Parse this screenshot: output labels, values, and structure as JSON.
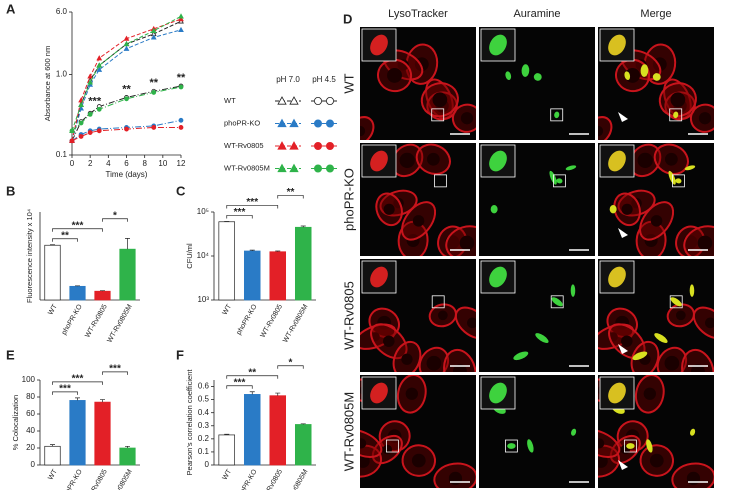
{
  "chart_data": [
    {
      "type": "line",
      "panel": "A",
      "y_label": "Absorbance at 600 nm",
      "x_label": "Time (days)",
      "x": [
        0,
        1,
        2,
        3,
        6,
        9,
        12
      ],
      "xlim": [
        0,
        12
      ],
      "xticks": [
        0,
        2,
        4,
        6,
        8,
        10,
        12
      ],
      "ylim": [
        0.1,
        6
      ],
      "yticks": [
        0.1,
        {
          "value": 1,
          "label": "1.0"
        },
        {
          "value": 6,
          "label": "6.0"
        }
      ],
      "log_y": true,
      "conditions": [
        "pH 7.0",
        "pH 4.5"
      ],
      "series": [
        {
          "name": "WT",
          "color": "#222222",
          "filled": false,
          "values": [
            [
              0.15,
              0.42,
              0.85,
              1.3,
              2.4,
              3.2,
              4.6
            ],
            [
              0.15,
              0.26,
              0.33,
              0.4,
              0.52,
              0.62,
              0.72
            ]
          ]
        },
        {
          "name": "phoPR-KO",
          "color": "#2a7bc6",
          "filled": true,
          "values": [
            [
              0.15,
              0.38,
              0.75,
              1.15,
              2.1,
              2.9,
              3.6
            ],
            [
              0.15,
              0.18,
              0.2,
              0.21,
              0.22,
              0.23,
              0.27
            ]
          ]
        },
        {
          "name": "WT-Rv0805",
          "color": "#e32027",
          "filled": true,
          "values": [
            [
              0.15,
              0.48,
              0.95,
              1.6,
              2.8,
              3.7,
              4.9
            ],
            [
              0.15,
              0.17,
              0.19,
              0.2,
              0.21,
              0.22,
              0.22
            ]
          ]
        },
        {
          "name": "WT-Rv0805M",
          "color": "#2fb34a",
          "filled": true,
          "values": [
            [
              0.2,
              0.42,
              0.8,
              1.3,
              2.4,
              3.5,
              5.3
            ],
            [
              0.2,
              0.25,
              0.32,
              0.37,
              0.5,
              0.6,
              0.7
            ]
          ]
        }
      ],
      "annotations": [
        {
          "text": "***",
          "x": 2.5
        },
        {
          "text": "**",
          "x": 6
        },
        {
          "text": "**",
          "x": 9
        },
        {
          "text": "**",
          "x": 12
        }
      ]
    },
    {
      "type": "bar",
      "panel": "B",
      "y_label": "Fluorescence intensity x 10⁴",
      "categories": [
        "WT",
        "phoPR-KO",
        "WT-Rv0805",
        "WT-Rv0805M"
      ],
      "values": [
        5.6,
        1.4,
        0.9,
        5.2
      ],
      "errors": [
        0.05,
        0.05,
        0.05,
        1.1
      ],
      "colors": [
        "#ffffff",
        "#2a7bc6",
        "#e32027",
        "#2fb34a"
      ],
      "ylim": [
        0,
        9
      ],
      "comparisons": [
        {
          "bars": [
            0,
            1
          ],
          "label": "**"
        },
        {
          "bars": [
            0,
            2
          ],
          "label": "***"
        },
        {
          "bars": [
            2,
            3
          ],
          "label": "*"
        }
      ]
    },
    {
      "type": "bar",
      "panel": "C",
      "y_label": "CFU/ml",
      "categories": [
        "WT",
        "phoPR-KO",
        "WT-Rv0805",
        "WT-Rv0805M"
      ],
      "values": [
        60000,
        13000,
        12500,
        45000
      ],
      "errors": [
        1000,
        600,
        500,
        3000
      ],
      "colors": [
        "#ffffff",
        "#2a7bc6",
        "#e32027",
        "#2fb34a"
      ],
      "ylim": [
        1000,
        100000
      ],
      "log_y": true,
      "yticks": [
        {
          "value": 1000,
          "label": "10³"
        },
        {
          "value": 10000,
          "label": "10⁴"
        },
        {
          "value": 100000,
          "label": "10⁵"
        }
      ],
      "comparisons": [
        {
          "bars": [
            0,
            1
          ],
          "label": "***"
        },
        {
          "bars": [
            0,
            2
          ],
          "label": "***"
        },
        {
          "bars": [
            2,
            3
          ],
          "label": "**"
        }
      ]
    },
    {
      "type": "bar",
      "panel": "E",
      "y_label": "% Colocalization",
      "categories": [
        "WT",
        "phoPR-KO",
        "WT-Rv0805",
        "WT-Rv0805M"
      ],
      "values": [
        22,
        76,
        74,
        20
      ],
      "errors": [
        2,
        3,
        3,
        2
      ],
      "colors": [
        "#ffffff",
        "#2a7bc6",
        "#e32027",
        "#2fb34a"
      ],
      "ylim": [
        0,
        100
      ],
      "yticks": [
        0,
        20,
        40,
        60,
        80,
        100
      ],
      "comparisons": [
        {
          "bars": [
            0,
            1
          ],
          "label": "***"
        },
        {
          "bars": [
            0,
            2
          ],
          "label": "***"
        },
        {
          "bars": [
            2,
            3
          ],
          "label": "***"
        }
      ]
    },
    {
      "type": "bar",
      "panel": "F",
      "y_label": "Pearson's correlation coefficient",
      "categories": [
        "WT",
        "phoPR-KO",
        "WT-Rv0805",
        "WT-Rv0805M"
      ],
      "values": [
        0.23,
        0.54,
        0.53,
        0.31
      ],
      "errors": [
        0.005,
        0.02,
        0.02,
        0.005
      ],
      "colors": [
        "#ffffff",
        "#2a7bc6",
        "#e32027",
        "#2fb34a"
      ],
      "ylim": [
        0,
        0.65
      ],
      "yticks": [
        0,
        0.1,
        0.2,
        0.3,
        0.4,
        0.5,
        0.6
      ],
      "comparisons": [
        {
          "bars": [
            0,
            1
          ],
          "label": "***"
        },
        {
          "bars": [
            0,
            2
          ],
          "label": "**"
        },
        {
          "bars": [
            2,
            3
          ],
          "label": "*"
        }
      ]
    }
  ],
  "microscopy": {
    "panel": "D",
    "columns": [
      "LysoTracker",
      "Auramine",
      "Merge"
    ],
    "rows": [
      "WT",
      "phoPR-KO",
      "WT-Rv0805",
      "WT-Rv0805M"
    ]
  }
}
